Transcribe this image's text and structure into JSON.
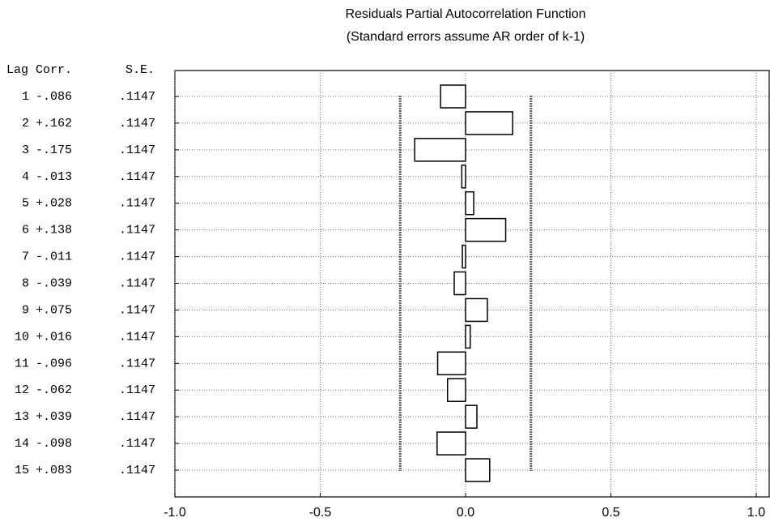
{
  "chart_data": {
    "type": "bar",
    "orientation": "horizontal",
    "title": "Residuals Partial Autocorrelation Function",
    "subtitle": "(Standard errors assume AR order of k-1)",
    "columns": [
      "Lag",
      "Corr.",
      "S.E."
    ],
    "categories": [
      "1",
      "2",
      "3",
      "4",
      "5",
      "6",
      "7",
      "8",
      "9",
      "10",
      "11",
      "12",
      "13",
      "14",
      "15"
    ],
    "values": [
      -0.086,
      0.162,
      -0.175,
      -0.013,
      0.028,
      0.138,
      -0.011,
      -0.039,
      0.075,
      0.016,
      -0.096,
      -0.062,
      0.039,
      -0.098,
      0.083
    ],
    "value_labels": [
      "-.086",
      "+.162",
      "-.175",
      "-.013",
      "+.028",
      "+.138",
      "-.011",
      "-.039",
      "+.075",
      "+.016",
      "-.096",
      "-.062",
      "+.039",
      "-.098",
      "+.083"
    ],
    "standard_errors": [
      0.1147,
      0.1147,
      0.1147,
      0.1147,
      0.1147,
      0.1147,
      0.1147,
      0.1147,
      0.1147,
      0.1147,
      0.1147,
      0.1147,
      0.1147,
      0.1147,
      0.1147
    ],
    "standard_error_labels": [
      ".1147",
      ".1147",
      ".1147",
      ".1147",
      ".1147",
      ".1147",
      ".1147",
      ".1147",
      ".1147",
      ".1147",
      ".1147",
      ".1147",
      ".1147",
      ".1147",
      ".1147"
    ],
    "confidence_limits": [
      -0.2248,
      0.2248
    ],
    "xlim": [
      -1,
      1
    ],
    "xticks": [
      {
        "value": -1,
        "label": "-1.0"
      },
      {
        "value": -0.5,
        "label": "-0.5"
      },
      {
        "value": 0,
        "label": "0.0"
      },
      {
        "value": 0.5,
        "label": "0.5"
      },
      {
        "value": 1,
        "label": "1.0"
      }
    ],
    "grid": true,
    "color": "#ffffff"
  }
}
